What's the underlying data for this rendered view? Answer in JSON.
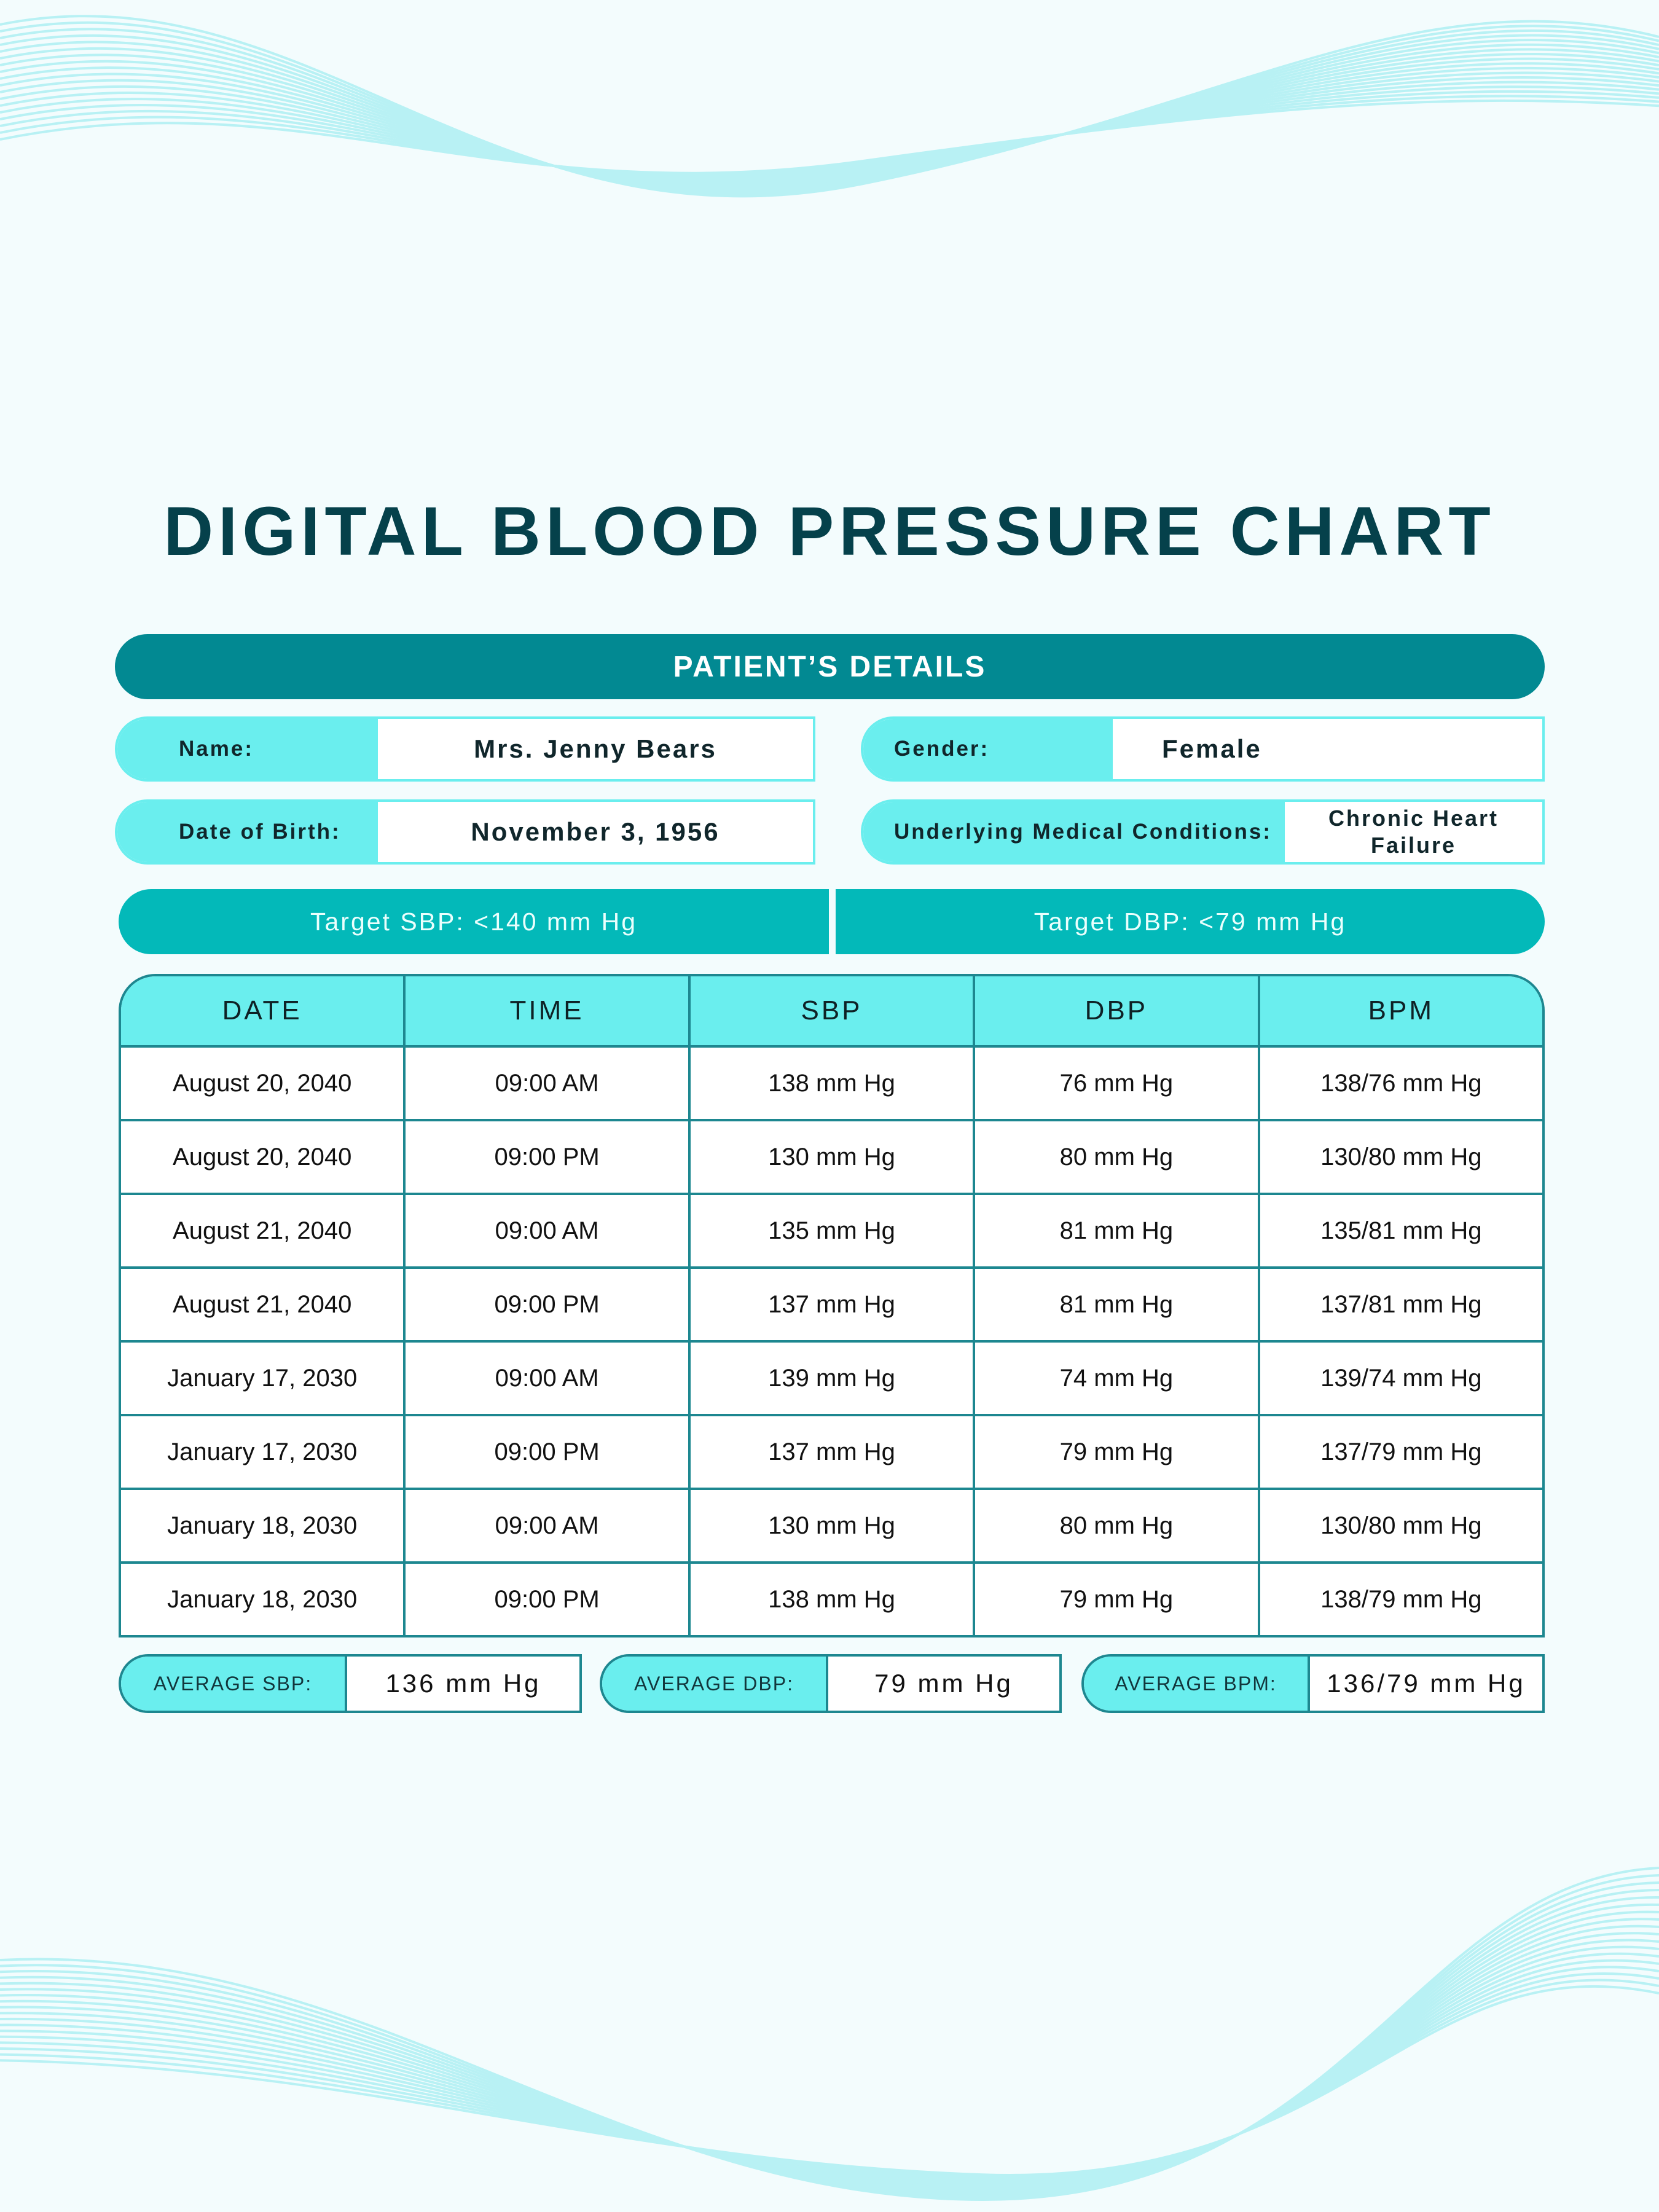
{
  "title": "DIGITAL BLOOD PRESSURE CHART",
  "details": {
    "header": "PATIENT’S DETAILS",
    "name_label": "Name:",
    "name_value": "Mrs. Jenny Bears",
    "gender_label": "Gender:",
    "gender_value": "Female",
    "dob_label": "Date of Birth:",
    "dob_value": "November 3, 1956",
    "conditions_label": "Underlying Medical Conditions:",
    "conditions_value": "Chronic Heart Failure"
  },
  "targets": {
    "sbp": "Target SBP: <140 mm Hg",
    "dbp": "Target DBP: <79 mm Hg"
  },
  "table": {
    "headers": [
      "DATE",
      "TIME",
      "SBP",
      "DBP",
      "BPM"
    ],
    "rows": [
      [
        "August 20, 2040",
        "09:00 AM",
        "138 mm Hg",
        "76 mm Hg",
        "138/76 mm Hg"
      ],
      [
        "August 20, 2040",
        "09:00 PM",
        "130 mm Hg",
        "80 mm Hg",
        "130/80 mm Hg"
      ],
      [
        "August 21, 2040",
        "09:00 AM",
        "135 mm Hg",
        "81 mm Hg",
        "135/81 mm Hg"
      ],
      [
        "August 21, 2040",
        "09:00 PM",
        "137 mm Hg",
        "81 mm Hg",
        "137/81 mm Hg"
      ],
      [
        "January 17, 2030",
        "09:00 AM",
        "139 mm Hg",
        "74 mm Hg",
        "139/74 mm Hg"
      ],
      [
        "January 17, 2030",
        "09:00 PM",
        "137 mm Hg",
        "79 mm Hg",
        "137/79 mm Hg"
      ],
      [
        "January 18, 2030",
        "09:00 AM",
        "130 mm Hg",
        "80 mm Hg",
        "130/80 mm Hg"
      ],
      [
        "January 18, 2030",
        "09:00 PM",
        "138 mm Hg",
        "79 mm Hg",
        "138/79 mm Hg"
      ]
    ]
  },
  "averages": {
    "sbp_label": "AVERAGE SBP:",
    "sbp_value": "136 mm Hg",
    "dbp_label": "AVERAGE DBP:",
    "dbp_value": "79 mm Hg",
    "bpm_label": "AVERAGE BPM:",
    "bpm_value": "136/79 mm Hg"
  },
  "colors": {
    "title": "#05414b",
    "header_band": "#028992",
    "label_fill": "#6aeeee",
    "target_band": "#03b9b9",
    "table_border": "#1d8790",
    "background": "#f3fcfd",
    "wave_lines": "#b8f1f4"
  }
}
